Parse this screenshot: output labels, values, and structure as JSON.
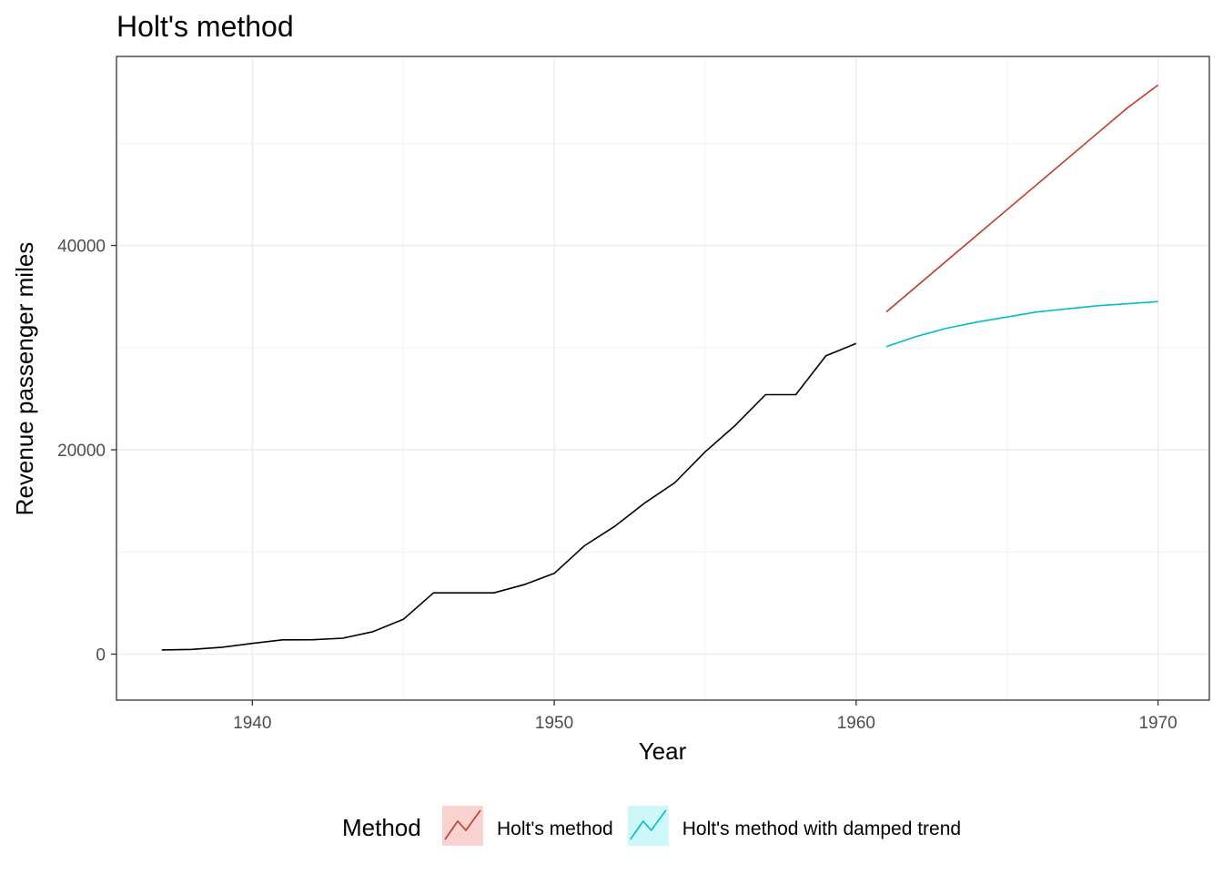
{
  "chart_data": {
    "type": "line",
    "title": "Holt's method",
    "xlabel": "Year",
    "ylabel": "Revenue passenger miles",
    "xlim": [
      1935.5,
      1971.7
    ],
    "ylim": [
      -4500,
      58500
    ],
    "x_ticks": [
      1940,
      1950,
      1960,
      1970
    ],
    "x_tick_labels": [
      "1940",
      "1950",
      "1960",
      "1970"
    ],
    "y_ticks": [
      0,
      20000,
      40000
    ],
    "y_tick_labels": [
      "0",
      "20000",
      "40000"
    ],
    "y_minor_ticks": [
      10000,
      30000,
      50000
    ],
    "grid": true,
    "legend": {
      "title": "Method",
      "position": "bottom"
    },
    "series": [
      {
        "color": "#000000",
        "x": [
          1937,
          1938,
          1939,
          1940,
          1941,
          1942,
          1943,
          1944,
          1945,
          1946,
          1947,
          1948,
          1949,
          1950,
          1951,
          1952,
          1953,
          1954,
          1955,
          1956,
          1957,
          1958,
          1959,
          1960
        ],
        "values": [
          410,
          460,
          680,
          1050,
          1400,
          1410,
          1560,
          2200,
          3400,
          6000,
          6000,
          6000,
          6800,
          7900,
          10600,
          12500,
          14800,
          16800,
          19800,
          22400,
          25400,
          25400,
          29200,
          30400
        ]
      },
      {
        "name": "Holt's method",
        "color": "#c0392b",
        "x": [
          1961,
          1962,
          1963,
          1964,
          1965,
          1966,
          1967,
          1968,
          1969,
          1970
        ],
        "values": [
          33500,
          36000,
          38500,
          41000,
          43500,
          46000,
          48500,
          51000,
          53500,
          55700
        ]
      },
      {
        "name": "Holt's method with damped trend",
        "color": "#00bfc4",
        "x": [
          1961,
          1962,
          1963,
          1964,
          1965,
          1966,
          1967,
          1968,
          1969,
          1970
        ],
        "values": [
          30100,
          31100,
          31900,
          32500,
          33000,
          33500,
          33800,
          34100,
          34300,
          34500
        ]
      }
    ]
  }
}
